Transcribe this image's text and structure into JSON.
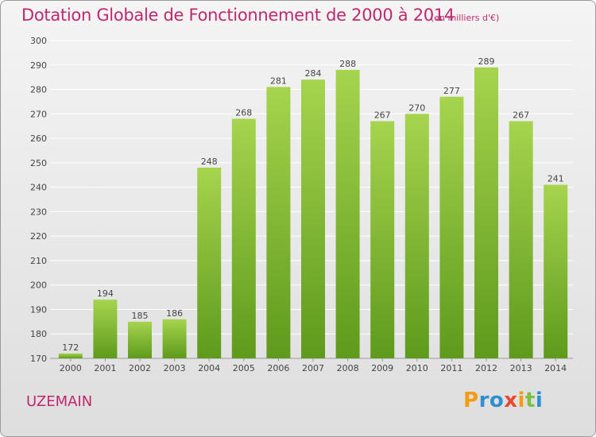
{
  "title": "Dotation Globale de Fonctionnement de 2000 à 2014",
  "unit_note": "(en milliers d'€)",
  "commune": "UZEMAIN",
  "brand": {
    "letters": [
      "P",
      "r",
      "o",
      "x",
      "i",
      "t",
      "i"
    ],
    "colors": [
      "#f39c12",
      "#2f8fd0",
      "#2f8fd0",
      "#e8492f",
      "#f39c12",
      "#7ac143",
      "#2f8fd0"
    ]
  },
  "colors": {
    "title": "#c0286e",
    "bar_light": "#a6d44e",
    "bar_dark": "#5e9a1c",
    "grid": "#ffffff"
  },
  "chart_data": {
    "type": "bar",
    "title": "Dotation Globale de Fonctionnement de 2000 à 2014",
    "subtitle": "(en milliers d'€)",
    "categories": [
      "2000",
      "2001",
      "2002",
      "2003",
      "2004",
      "2005",
      "2006",
      "2007",
      "2008",
      "2009",
      "2010",
      "2011",
      "2012",
      "2013",
      "2014"
    ],
    "values": [
      172,
      194,
      185,
      186,
      248,
      268,
      281,
      284,
      288,
      267,
      270,
      277,
      289,
      267,
      241
    ],
    "ylim": [
      170,
      300
    ],
    "yticks": [
      170,
      180,
      190,
      200,
      210,
      220,
      230,
      240,
      250,
      260,
      270,
      280,
      290,
      300
    ],
    "grid": true,
    "data_labels": true
  }
}
